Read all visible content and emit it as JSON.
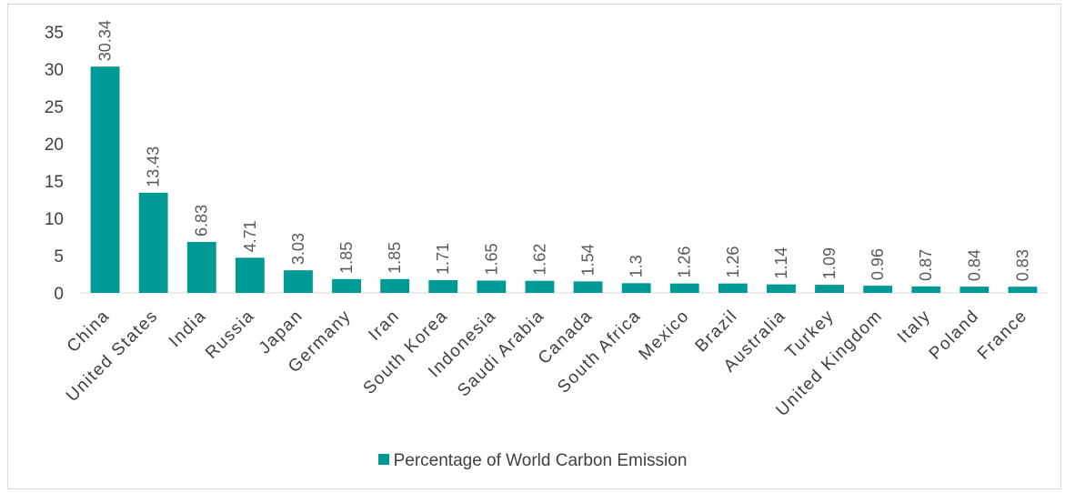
{
  "chart_data": {
    "type": "bar",
    "categories": [
      "China",
      "United States",
      "India",
      "Russia",
      "Japan",
      "Germany",
      "Iran",
      "South Korea",
      "Indonesia",
      "Saudi Arabia",
      "Canada",
      "South Africa",
      "Mexico",
      "Brazil",
      "Australia",
      "Turkey",
      "United Kingdom",
      "Italy",
      "Poland",
      "France"
    ],
    "series": [
      {
        "name": "Percentage of  World Carbon Emission",
        "values": [
          30.34,
          13.43,
          6.83,
          4.71,
          3.03,
          1.85,
          1.85,
          1.71,
          1.65,
          1.62,
          1.54,
          1.3,
          1.26,
          1.26,
          1.14,
          1.09,
          0.96,
          0.87,
          0.84,
          0.83
        ],
        "labels": [
          "30.34",
          "13.43",
          "6.83",
          "4.71",
          "3.03",
          "1.85",
          "1.85",
          "1.71",
          "1.65",
          "1.62",
          "1.54",
          "1.3",
          "1.26",
          "1.26",
          "1.14",
          "1.09",
          "0.96",
          "0.87",
          "0.84",
          "0.83"
        ],
        "color": "#009a96"
      }
    ],
    "ylim": [
      0,
      35
    ],
    "yticks": [
      "0",
      "5",
      "10",
      "15",
      "20",
      "25",
      "30",
      "35"
    ],
    "grid": false,
    "legend_position": "bottom",
    "title": "",
    "xlabel": "",
    "ylabel": ""
  }
}
